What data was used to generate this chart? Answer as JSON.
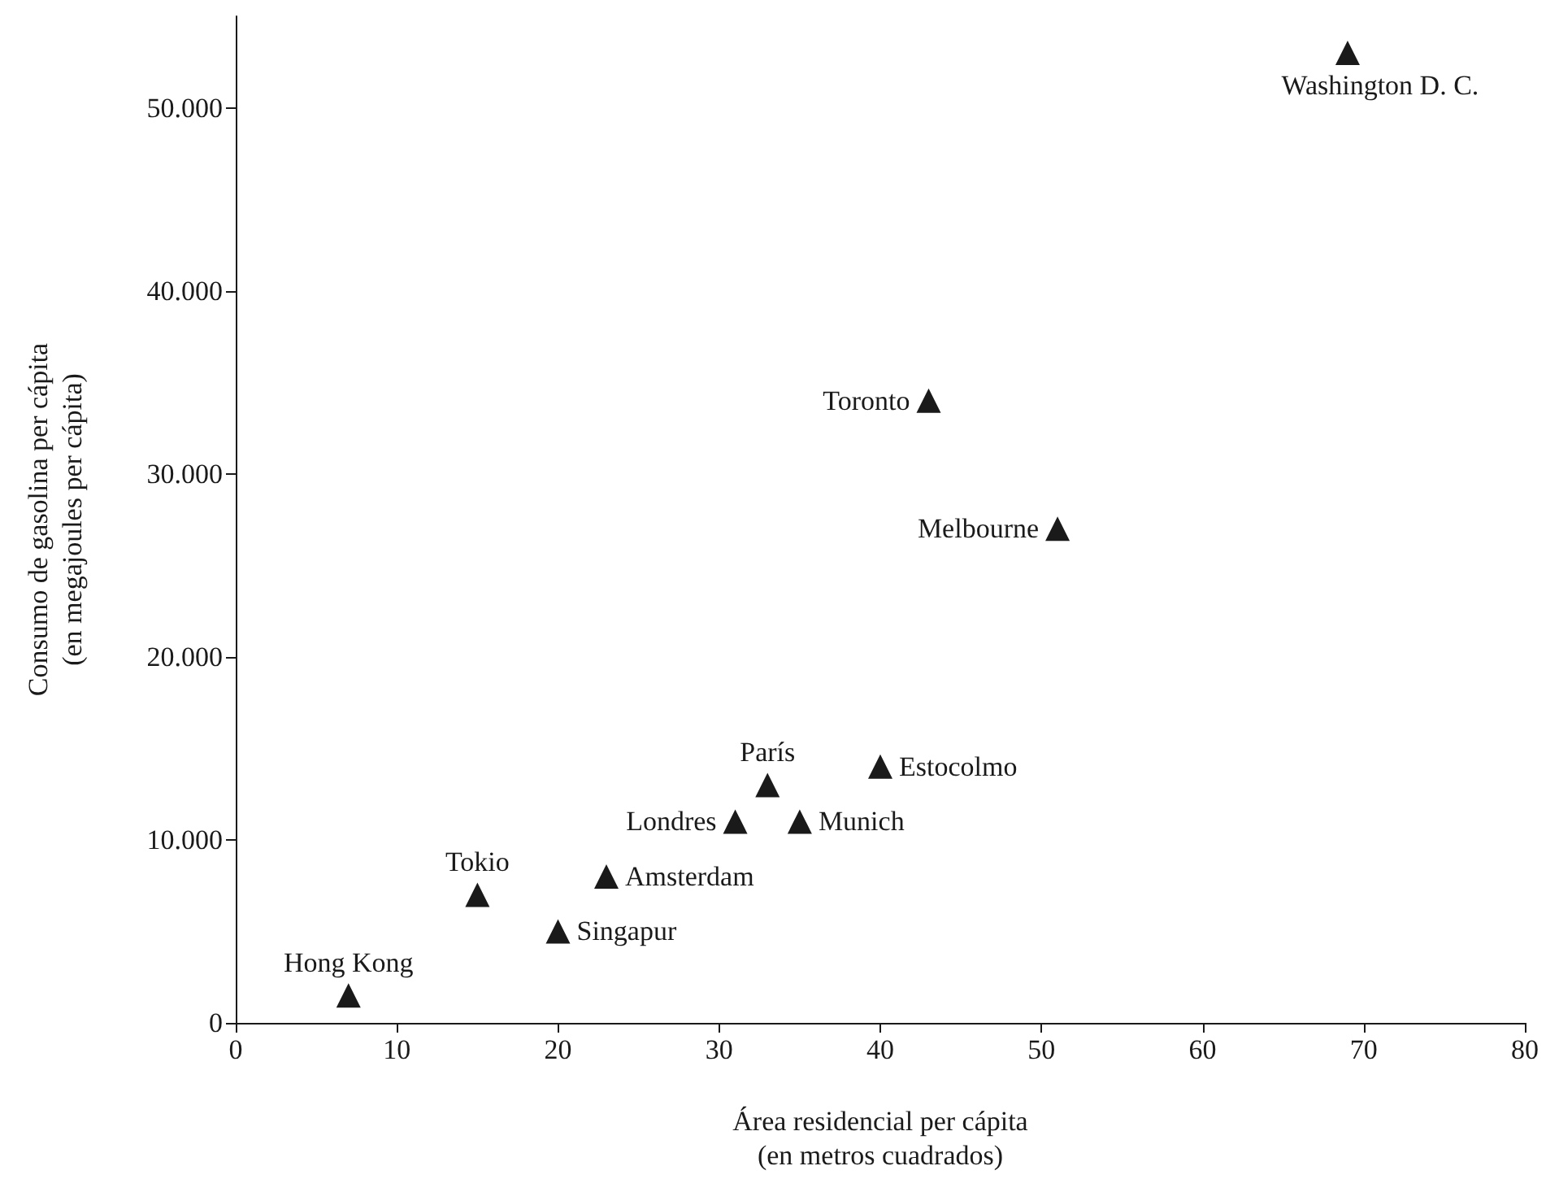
{
  "chart_data": {
    "type": "scatter",
    "xlabel": "Área residencial per cápita\n(en metros cuadrados)",
    "ylabel": "Consumo de gasolina per cápita\n(en megajoules per cápita)",
    "x": [
      7,
      15,
      20,
      23,
      31,
      33,
      35,
      40,
      51,
      43,
      69
    ],
    "series": [
      {
        "color": "#1a1a1a",
        "values": [
          1500,
          7000,
          5000,
          8000,
          11000,
          13000,
          11000,
          14000,
          27000,
          34000,
          53000
        ]
      }
    ],
    "xlim": [
      0,
      80
    ],
    "xticks": [
      0,
      10,
      20,
      30,
      40,
      50,
      60,
      70,
      80
    ],
    "ylim": [
      0,
      55000
    ],
    "yticks": [
      {
        "value": 0,
        "label": "0"
      },
      {
        "value": 10000,
        "label": "10.000"
      },
      {
        "value": 20000,
        "label": "20.000"
      },
      {
        "value": 30000,
        "label": "30.000"
      },
      {
        "value": 40000,
        "label": "40.000"
      },
      {
        "value": 50000,
        "label": "50.000"
      }
    ],
    "annotations": [
      {
        "text": "Hong Kong",
        "x": 7,
        "y": 1500
      },
      {
        "text": "Tokio",
        "x": 15,
        "y": 7000
      },
      {
        "text": "Singapur",
        "x": 20,
        "y": 5000
      },
      {
        "text": "Amsterdam",
        "x": 23,
        "y": 8000
      },
      {
        "text": "Londres",
        "x": 31,
        "y": 11000
      },
      {
        "text": "París",
        "x": 33,
        "y": 13000
      },
      {
        "text": "Munich",
        "x": 35,
        "y": 11000
      },
      {
        "text": "Estocolmo",
        "x": 40,
        "y": 14000
      },
      {
        "text": "Melbourne",
        "x": 51,
        "y": 27000
      },
      {
        "text": "Toronto",
        "x": 43,
        "y": 34000
      },
      {
        "text": "Washington D. C.",
        "x": 69,
        "y": 53000
      }
    ],
    "grid": false,
    "marker": "triangle"
  }
}
